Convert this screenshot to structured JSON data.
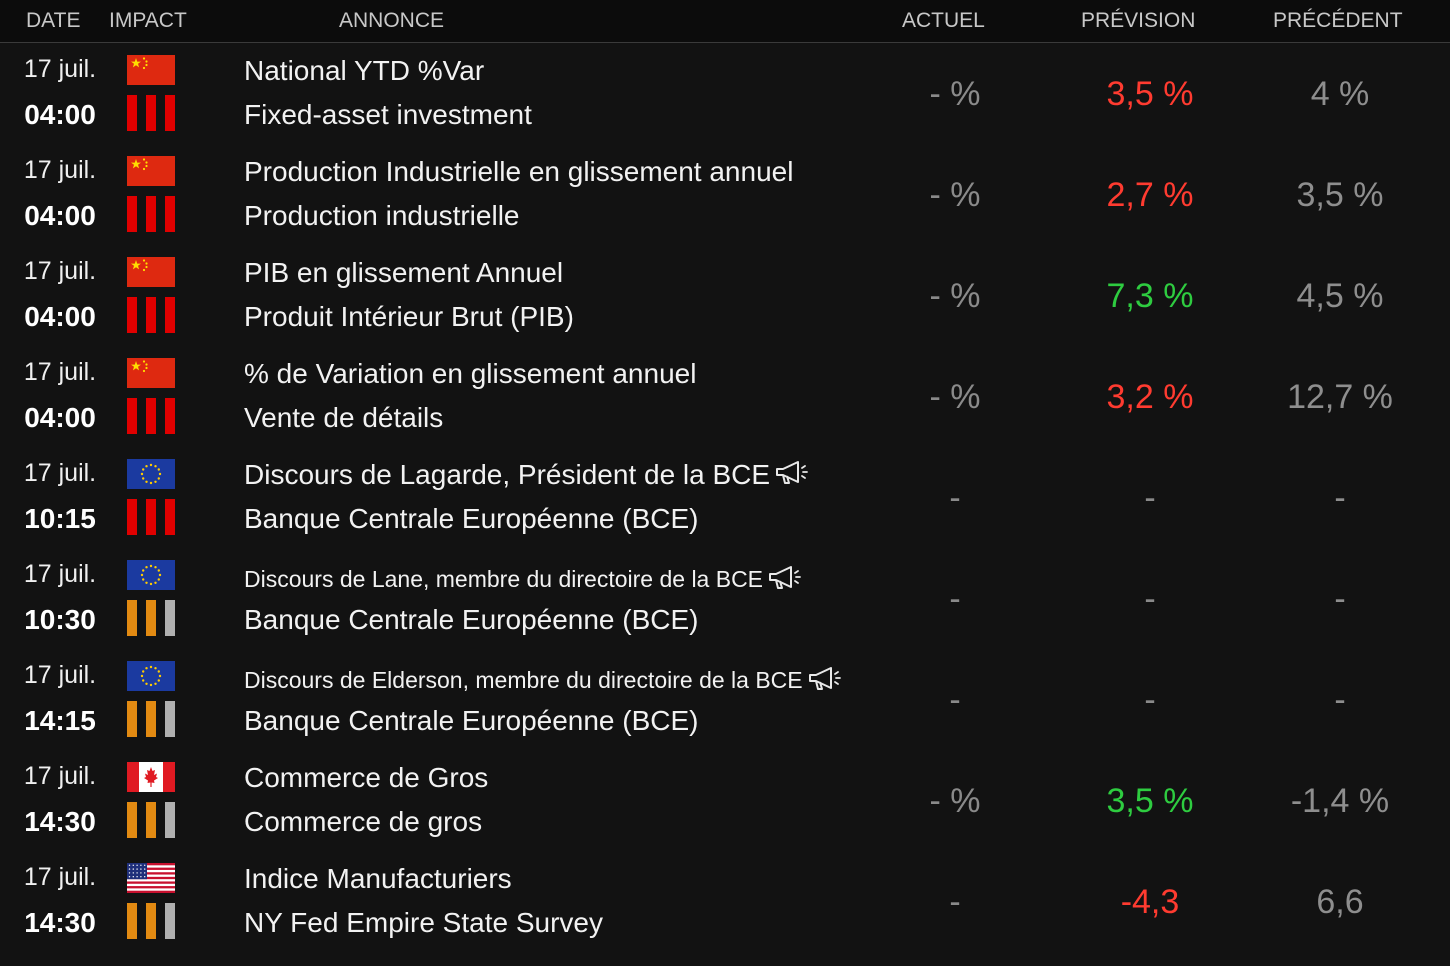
{
  "header": {
    "date": "DATE",
    "impact": "IMPACT",
    "announcement": "ANNONCE",
    "actual": "ACTUEL",
    "forecast": "PRÉVISION",
    "previous": "PRÉCÉDENT"
  },
  "colors": {
    "impact_red": "#e00000",
    "impact_orange": "#e28a12",
    "impact_gray": "#b0b0b0",
    "forecast_red": "#ff3b30",
    "forecast_green": "#2ecc40"
  },
  "events": [
    {
      "date": "17 juil.",
      "time": "04:00",
      "flag": "china-flag",
      "impact": [
        "red",
        "red",
        "red"
      ],
      "title": "National YTD %Var",
      "subtitle": "Fixed-asset investment",
      "speech": false,
      "small": false,
      "actual": "- %",
      "forecast": "3,5 %",
      "forecast_color": "red",
      "previous": "4 %"
    },
    {
      "date": "17 juil.",
      "time": "04:00",
      "flag": "china-flag",
      "impact": [
        "red",
        "red",
        "red"
      ],
      "title": "Production Industrielle en glissement annuel",
      "subtitle": "Production industrielle",
      "speech": false,
      "small": false,
      "actual": "- %",
      "forecast": "2,7 %",
      "forecast_color": "red",
      "previous": "3,5 %"
    },
    {
      "date": "17 juil.",
      "time": "04:00",
      "flag": "china-flag",
      "impact": [
        "red",
        "red",
        "red"
      ],
      "title": "PIB en glissement Annuel",
      "subtitle": "Produit Intérieur Brut (PIB)",
      "speech": false,
      "small": false,
      "actual": "- %",
      "forecast": "7,3 %",
      "forecast_color": "green",
      "previous": "4,5 %"
    },
    {
      "date": "17 juil.",
      "time": "04:00",
      "flag": "china-flag",
      "impact": [
        "red",
        "red",
        "red"
      ],
      "title": "% de Variation en glissement annuel",
      "subtitle": "Vente de détails",
      "speech": false,
      "small": false,
      "actual": "- %",
      "forecast": "3,2 %",
      "forecast_color": "red",
      "previous": "12,7 %"
    },
    {
      "date": "17 juil.",
      "time": "10:15",
      "flag": "eu-flag",
      "impact": [
        "red",
        "red",
        "red"
      ],
      "title": "Discours de Lagarde, Président de la BCE",
      "subtitle": "Banque Centrale Européenne (BCE)",
      "speech": true,
      "small": false,
      "actual": "-",
      "forecast": "-",
      "forecast_color": "dash",
      "previous": "-"
    },
    {
      "date": "17 juil.",
      "time": "10:30",
      "flag": "eu-flag",
      "impact": [
        "orange",
        "orange",
        "gray"
      ],
      "title": "Discours de Lane, membre du directoire de la BCE",
      "subtitle": "Banque Centrale Européenne (BCE)",
      "speech": true,
      "small": true,
      "actual": "-",
      "forecast": "-",
      "forecast_color": "dash",
      "previous": "-"
    },
    {
      "date": "17 juil.",
      "time": "14:15",
      "flag": "eu-flag",
      "impact": [
        "orange",
        "orange",
        "gray"
      ],
      "title": "Discours de Elderson, membre du directoire de la BCE",
      "subtitle": "Banque Centrale Européenne (BCE)",
      "speech": true,
      "small": true,
      "actual": "-",
      "forecast": "-",
      "forecast_color": "dash",
      "previous": "-"
    },
    {
      "date": "17 juil.",
      "time": "14:30",
      "flag": "canada-flag",
      "impact": [
        "orange",
        "orange",
        "gray"
      ],
      "title": "Commerce de Gros",
      "subtitle": "Commerce de gros",
      "speech": false,
      "small": false,
      "actual": "- %",
      "forecast": "3,5 %",
      "forecast_color": "green",
      "previous": "-1,4 %"
    },
    {
      "date": "17 juil.",
      "time": "14:30",
      "flag": "usa-flag",
      "impact": [
        "orange",
        "orange",
        "gray"
      ],
      "title": "Indice Manufacturiers",
      "subtitle": "NY Fed Empire State Survey",
      "speech": false,
      "small": false,
      "actual": "-",
      "forecast": "-4,3",
      "forecast_color": "red",
      "previous": "6,6"
    }
  ]
}
